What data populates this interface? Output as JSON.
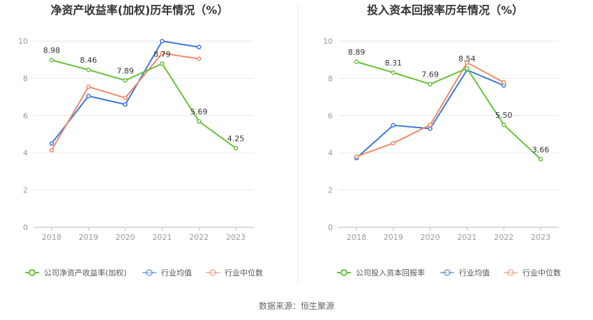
{
  "source_text": "数据来源：恒生聚源",
  "colors": {
    "company": "#67c23a",
    "avg": "#3a78d8",
    "median": "#f08a66",
    "grid": "#e4e7ef",
    "axis": "#bbbbbb"
  },
  "chart_data": [
    {
      "type": "line",
      "title": "净资产收益率(加权)历年情况（%）",
      "categories": [
        "2018",
        "2019",
        "2020",
        "2021",
        "2022",
        "2023"
      ],
      "y_ticks": [
        "0",
        "2",
        "4",
        "6",
        "8",
        "10"
      ],
      "ylim": [
        0,
        10
      ],
      "legend": [
        "公司净资产收益率(加权)",
        "行业均值",
        "行业中位数"
      ],
      "series": [
        {
          "name": "公司净资产收益率(加权)",
          "key": "company",
          "values": [
            8.98,
            8.46,
            7.89,
            8.79,
            5.69,
            4.25
          ],
          "labels": [
            "8.98",
            "8.46",
            "7.89",
            "8.79",
            "5.69",
            "4.25"
          ]
        },
        {
          "name": "行业均值",
          "key": "avg",
          "values": [
            4.5,
            7.05,
            6.6,
            10.0,
            9.68,
            null
          ]
        },
        {
          "name": "行业中位数",
          "key": "median",
          "values": [
            4.15,
            7.55,
            6.95,
            9.35,
            9.05,
            null
          ]
        }
      ]
    },
    {
      "type": "line",
      "title": "投入资本回报率历年情况（%）",
      "categories": [
        "2018",
        "2019",
        "2020",
        "2021",
        "2022",
        "2023"
      ],
      "y_ticks": [
        "0",
        "2",
        "4",
        "6",
        "8",
        "10"
      ],
      "ylim": [
        0,
        10
      ],
      "legend": [
        "公司投入资本回报率",
        "行业均值",
        "行业中位数"
      ],
      "series": [
        {
          "name": "公司投入资本回报率",
          "key": "company",
          "values": [
            8.89,
            8.31,
            7.69,
            8.54,
            5.5,
            3.66
          ],
          "labels": [
            "8.89",
            "8.31",
            "7.69",
            "8.54",
            "5.50",
            "3.66"
          ]
        },
        {
          "name": "行业均值",
          "key": "avg",
          "values": [
            3.72,
            5.48,
            5.3,
            8.45,
            7.62,
            null
          ]
        },
        {
          "name": "行业中位数",
          "key": "median",
          "values": [
            3.8,
            4.52,
            5.5,
            8.85,
            7.78,
            null
          ]
        }
      ]
    }
  ]
}
